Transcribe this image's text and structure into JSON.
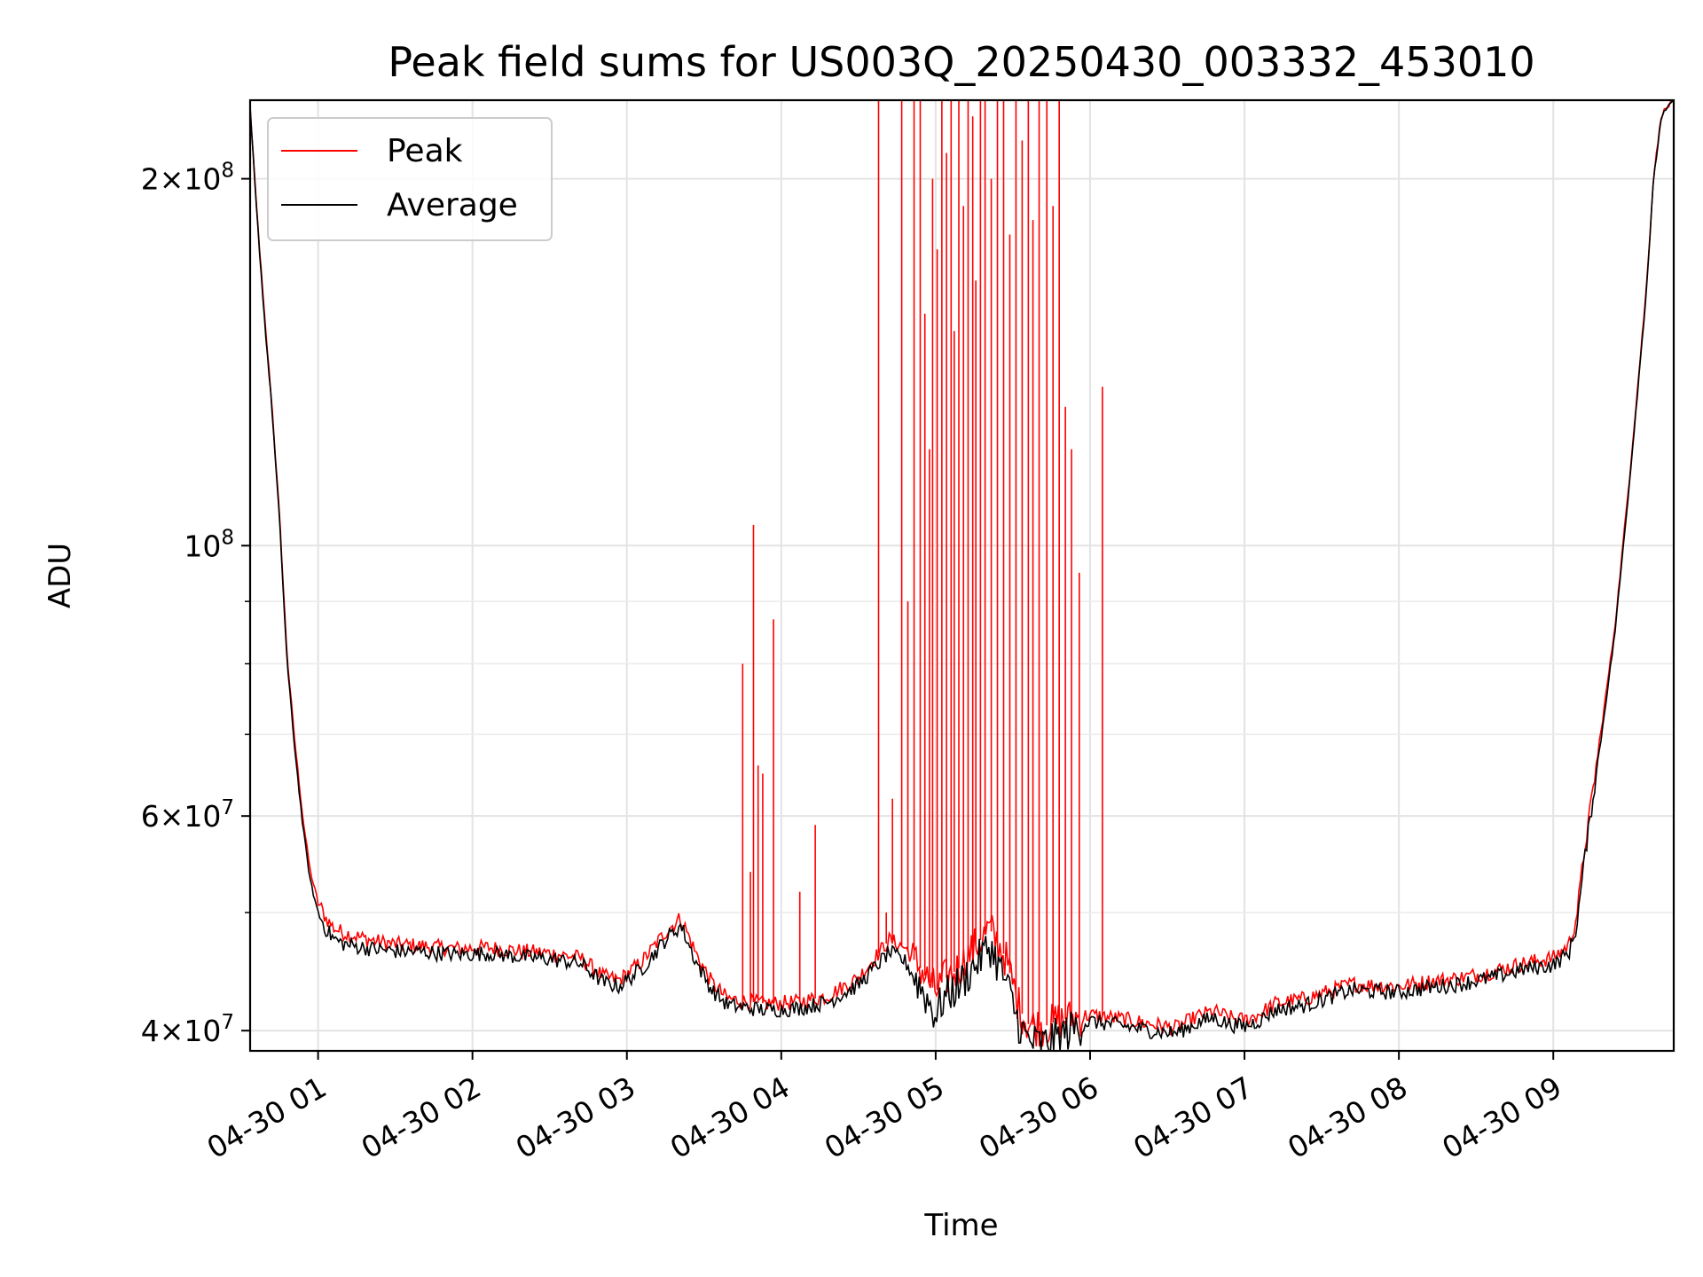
{
  "chart_data": {
    "type": "line",
    "title": "Peak field sums for US003Q_20250430_003332_453010",
    "xlabel": "Time",
    "ylabel": "ADU",
    "yscale": "log",
    "ylim": [
      38500000,
      232000000
    ],
    "xlim_hours": [
      0.56,
      9.78
    ],
    "grid": true,
    "legend_position": "upper-left",
    "x_ticks": [
      {
        "hour": 1,
        "label": "04-30 01"
      },
      {
        "hour": 2,
        "label": "04-30 02"
      },
      {
        "hour": 3,
        "label": "04-30 03"
      },
      {
        "hour": 4,
        "label": "04-30 04"
      },
      {
        "hour": 5,
        "label": "04-30 05"
      },
      {
        "hour": 6,
        "label": "04-30 06"
      },
      {
        "hour": 7,
        "label": "04-30 07"
      },
      {
        "hour": 8,
        "label": "04-30 08"
      },
      {
        "hour": 9,
        "label": "04-30 09"
      }
    ],
    "y_ticks": [
      {
        "value": 40000000,
        "mantissa": "4",
        "exponent": "7"
      },
      {
        "value": 60000000,
        "mantissa": "6",
        "exponent": "7"
      },
      {
        "value": 100000000,
        "mantissa": "",
        "exponent": "8"
      },
      {
        "value": 200000000,
        "mantissa": "2",
        "exponent": "8"
      }
    ],
    "y_minor_ticks": [
      50000000,
      70000000,
      80000000,
      90000000
    ],
    "tick_base": "10",
    "tick_times": "×",
    "series": [
      {
        "name": "Average",
        "color": "#000000",
        "x": [
          0.56,
          0.6,
          0.65,
          0.7,
          0.75,
          0.8,
          0.85,
          0.9,
          0.95,
          1.0,
          1.05,
          1.1,
          1.15,
          1.2,
          1.3,
          1.4,
          1.5,
          1.7,
          1.9,
          2.1,
          2.3,
          2.5,
          2.7,
          2.85,
          2.95,
          3.1,
          3.25,
          3.35,
          3.45,
          3.55,
          3.65,
          3.75,
          3.9,
          4.1,
          4.3,
          4.5,
          4.6,
          4.7,
          4.8,
          4.9,
          5.0,
          5.05,
          5.15,
          5.25,
          5.35,
          5.45,
          5.55,
          5.6,
          5.7,
          5.8,
          5.9,
          6.0,
          6.2,
          6.4,
          6.55,
          6.7,
          6.8,
          6.9,
          7.0,
          7.1,
          7.2,
          7.4,
          7.6,
          7.7,
          7.8,
          8.0,
          8.2,
          8.4,
          8.6,
          8.8,
          9.0,
          9.1,
          9.15,
          9.2,
          9.3,
          9.4,
          9.5,
          9.6,
          9.65,
          9.7,
          9.78
        ],
        "y": [
          228000000,
          190000000,
          155000000,
          130000000,
          105000000,
          80000000,
          68000000,
          59000000,
          53000000,
          50000000,
          48500000,
          47600000,
          47200000,
          47000000,
          46800000,
          46600000,
          46500000,
          46400000,
          46200000,
          46300000,
          46000000,
          45800000,
          45400000,
          43800000,
          43500000,
          45000000,
          47500000,
          48800000,
          45500000,
          43200000,
          42000000,
          41800000,
          41600000,
          41700000,
          42200000,
          43600000,
          45000000,
          46400000,
          45600000,
          43500000,
          41200000,
          42500000,
          43600000,
          45200000,
          47000000,
          44000000,
          40200000,
          39200000,
          39000000,
          39600000,
          40200000,
          40700000,
          40400000,
          40000000,
          39800000,
          40600000,
          41000000,
          40500000,
          40300000,
          40800000,
          41600000,
          42000000,
          42800000,
          43200000,
          43100000,
          43000000,
          43400000,
          43700000,
          44200000,
          44900000,
          45300000,
          46300000,
          48600000,
          55000000,
          68000000,
          85000000,
          115000000,
          160000000,
          200000000,
          225000000,
          232000000
        ]
      },
      {
        "name": "Peak",
        "color": "#ff0000",
        "x": [
          0.56,
          0.6,
          0.65,
          0.7,
          0.75,
          0.8,
          0.85,
          0.9,
          0.95,
          1.0,
          1.05,
          1.1,
          1.15,
          1.2,
          1.3,
          1.4,
          1.5,
          1.7,
          1.9,
          2.1,
          2.3,
          2.5,
          2.7,
          2.85,
          2.95,
          3.1,
          3.25,
          3.35,
          3.45,
          3.55,
          3.65,
          3.75,
          3.9,
          4.1,
          4.3,
          4.5,
          4.6,
          4.7,
          4.8,
          4.9,
          5.0,
          5.05,
          5.15,
          5.25,
          5.35,
          5.45,
          5.55,
          5.6,
          5.7,
          5.8,
          5.9,
          6.0,
          6.2,
          6.4,
          6.55,
          6.7,
          6.8,
          6.9,
          7.0,
          7.1,
          7.2,
          7.4,
          7.6,
          7.7,
          7.8,
          8.0,
          8.2,
          8.4,
          8.6,
          8.8,
          9.0,
          9.1,
          9.15,
          9.2,
          9.3,
          9.4,
          9.5,
          9.6,
          9.65,
          9.7,
          9.78
        ],
        "y": [
          229000000,
          191000000,
          156000000,
          131000000,
          106000000,
          81000000,
          69000000,
          60000000,
          54000000,
          51000000,
          49500000,
          48600000,
          48200000,
          48000000,
          47600000,
          47300000,
          47100000,
          46900000,
          46700000,
          46800000,
          46500000,
          46300000,
          45900000,
          44300000,
          44000000,
          45600000,
          48200000,
          49500000,
          46200000,
          43800000,
          42500000,
          42300000,
          42100000,
          42200000,
          42700000,
          44200000,
          45800000,
          47500000,
          46800000,
          45000000,
          43000000,
          44000000,
          45000000,
          46800000,
          48500000,
          46000000,
          41500000,
          40500000,
          40300000,
          40800000,
          41000000,
          41200000,
          40900000,
          40500000,
          40200000,
          41100000,
          41500000,
          41000000,
          40800000,
          41300000,
          42100000,
          42500000,
          43300000,
          43700000,
          43600000,
          43500000,
          43900000,
          44200000,
          44700000,
          45400000,
          45900000,
          47000000,
          49500000,
          56000000,
          69000000,
          86000000,
          116000000,
          161000000,
          201000000,
          226000000,
          232000000
        ]
      }
    ],
    "peak_spikes": [
      {
        "x": 3.75,
        "y": 80000000
      },
      {
        "x": 3.8,
        "y": 54000000
      },
      {
        "x": 3.82,
        "y": 104000000
      },
      {
        "x": 3.85,
        "y": 66000000
      },
      {
        "x": 3.88,
        "y": 65000000
      },
      {
        "x": 3.95,
        "y": 87000000
      },
      {
        "x": 4.12,
        "y": 52000000
      },
      {
        "x": 4.22,
        "y": 59000000
      },
      {
        "x": 4.63,
        "y": 232000000
      },
      {
        "x": 4.68,
        "y": 50000000
      },
      {
        "x": 4.72,
        "y": 62000000
      },
      {
        "x": 4.78,
        "y": 232000000
      },
      {
        "x": 4.82,
        "y": 90000000
      },
      {
        "x": 4.86,
        "y": 232000000
      },
      {
        "x": 4.9,
        "y": 232000000
      },
      {
        "x": 4.93,
        "y": 155000000
      },
      {
        "x": 4.96,
        "y": 120000000
      },
      {
        "x": 4.98,
        "y": 200000000
      },
      {
        "x": 5.01,
        "y": 175000000
      },
      {
        "x": 5.04,
        "y": 232000000
      },
      {
        "x": 5.07,
        "y": 210000000
      },
      {
        "x": 5.1,
        "y": 232000000
      },
      {
        "x": 5.12,
        "y": 150000000
      },
      {
        "x": 5.15,
        "y": 232000000
      },
      {
        "x": 5.18,
        "y": 190000000
      },
      {
        "x": 5.21,
        "y": 232000000
      },
      {
        "x": 5.24,
        "y": 225000000
      },
      {
        "x": 5.26,
        "y": 165000000
      },
      {
        "x": 5.29,
        "y": 232000000
      },
      {
        "x": 5.32,
        "y": 232000000
      },
      {
        "x": 5.36,
        "y": 200000000
      },
      {
        "x": 5.4,
        "y": 232000000
      },
      {
        "x": 5.44,
        "y": 232000000
      },
      {
        "x": 5.48,
        "y": 180000000
      },
      {
        "x": 5.52,
        "y": 232000000
      },
      {
        "x": 5.56,
        "y": 215000000
      },
      {
        "x": 5.6,
        "y": 232000000
      },
      {
        "x": 5.63,
        "y": 185000000
      },
      {
        "x": 5.67,
        "y": 232000000
      },
      {
        "x": 5.72,
        "y": 232000000
      },
      {
        "x": 5.76,
        "y": 190000000
      },
      {
        "x": 5.8,
        "y": 232000000
      },
      {
        "x": 5.84,
        "y": 130000000
      },
      {
        "x": 5.88,
        "y": 120000000
      },
      {
        "x": 5.93,
        "y": 95000000
      },
      {
        "x": 6.08,
        "y": 135000000
      }
    ]
  }
}
